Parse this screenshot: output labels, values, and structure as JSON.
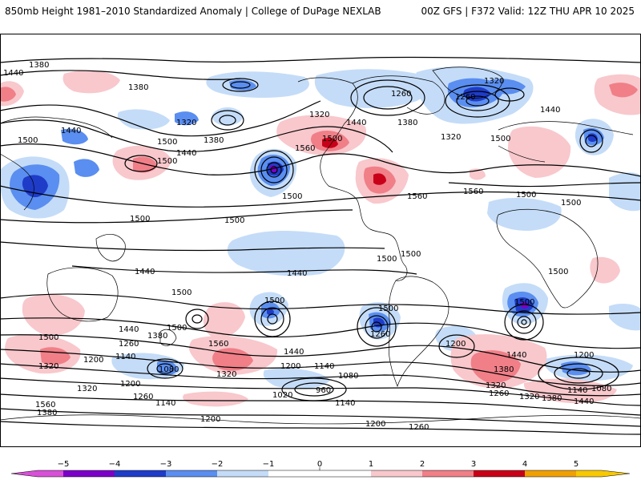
{
  "header": {
    "title_left": "850mb Height 1981–2010 Standardized Anomaly | College of DuPage NEXLAB",
    "title_right": "00Z GFS | F372 Valid: 12Z THU APR 10 2025"
  },
  "colors": {
    "neg5": "#d850d8",
    "neg4": "#7b00c8",
    "neg3": "#1e3cc8",
    "neg2": "#5a8ef0",
    "neg1": "#c4dcf8",
    "zero": "#ffffff",
    "pos1": "#f8c8cc",
    "pos2": "#f07f88",
    "pos3": "#c80018",
    "pos4": "#f0a000",
    "pos5": "#f8c800",
    "contour": "#000000",
    "coast": "#000000"
  },
  "colorbar": {
    "ticks": [
      "−5",
      "−4",
      "−3",
      "−2",
      "−1",
      "0",
      "1",
      "2",
      "3",
      "4",
      "5"
    ]
  },
  "contour_labels": [
    {
      "id": "c1",
      "text": "1380"
    },
    {
      "id": "c2",
      "text": "1440"
    },
    {
      "id": "c3",
      "text": "1380"
    },
    {
      "id": "c4",
      "text": "1320"
    },
    {
      "id": "c5",
      "text": "1260"
    },
    {
      "id": "c6",
      "text": "1320"
    },
    {
      "id": "c7",
      "text": "1260"
    },
    {
      "id": "c8",
      "text": "1380"
    },
    {
      "id": "c9",
      "text": "1320"
    },
    {
      "id": "c10",
      "text": "1440"
    },
    {
      "id": "c11",
      "text": "1440"
    },
    {
      "id": "c12",
      "text": "1500"
    },
    {
      "id": "c13",
      "text": "1440"
    },
    {
      "id": "c14",
      "text": "1500"
    },
    {
      "id": "c15",
      "text": "1380"
    },
    {
      "id": "c16",
      "text": "1320"
    },
    {
      "id": "c17",
      "text": "1560"
    },
    {
      "id": "c18",
      "text": "1500"
    },
    {
      "id": "c19",
      "text": "1440"
    },
    {
      "id": "c20",
      "text": "1500"
    },
    {
      "id": "c21",
      "text": "1560"
    },
    {
      "id": "c22",
      "text": "1500"
    },
    {
      "id": "c23",
      "text": "1560"
    },
    {
      "id": "c24",
      "text": "1500"
    },
    {
      "id": "c25",
      "text": "1500"
    },
    {
      "id": "c26",
      "text": "1500"
    },
    {
      "id": "c27",
      "text": "1500"
    },
    {
      "id": "c28",
      "text": "1500"
    },
    {
      "id": "c29",
      "text": "1500"
    },
    {
      "id": "c30",
      "text": "1440"
    },
    {
      "id": "c31",
      "text": "1440"
    },
    {
      "id": "c32",
      "text": "1500"
    },
    {
      "id": "c33",
      "text": "1500"
    },
    {
      "id": "c34",
      "text": "1500"
    },
    {
      "id": "c35",
      "text": "1500"
    },
    {
      "id": "c36",
      "text": "1500"
    },
    {
      "id": "c37",
      "text": "1500"
    },
    {
      "id": "c38",
      "text": "1560"
    },
    {
      "id": "c39",
      "text": "1440"
    },
    {
      "id": "c40",
      "text": "1380"
    },
    {
      "id": "c41",
      "text": "1320"
    },
    {
      "id": "c42",
      "text": "1260"
    },
    {
      "id": "c43",
      "text": "1200"
    },
    {
      "id": "c44",
      "text": "1140"
    },
    {
      "id": "c45",
      "text": "1080"
    },
    {
      "id": "c46",
      "text": "1200"
    },
    {
      "id": "c47",
      "text": "1320"
    },
    {
      "id": "c48",
      "text": "1380"
    },
    {
      "id": "c49",
      "text": "1260"
    },
    {
      "id": "c50",
      "text": "1140"
    },
    {
      "id": "c51",
      "text": "1560"
    },
    {
      "id": "c52",
      "text": "1440"
    },
    {
      "id": "c53",
      "text": "1320"
    },
    {
      "id": "c54",
      "text": "1200"
    },
    {
      "id": "c55",
      "text": "1140"
    },
    {
      "id": "c56",
      "text": "1080"
    },
    {
      "id": "c57",
      "text": "1020"
    },
    {
      "id": "c58",
      "text": "960"
    },
    {
      "id": "c59",
      "text": "1140"
    },
    {
      "id": "c60",
      "text": "1200"
    },
    {
      "id": "c61",
      "text": "1260"
    },
    {
      "id": "c62",
      "text": "1260"
    },
    {
      "id": "c63",
      "text": "1200"
    },
    {
      "id": "c64",
      "text": "1440"
    },
    {
      "id": "c65",
      "text": "1380"
    },
    {
      "id": "c66",
      "text": "1320"
    },
    {
      "id": "c67",
      "text": "1260"
    },
    {
      "id": "c68",
      "text": "1200"
    },
    {
      "id": "c69",
      "text": "1140"
    },
    {
      "id": "c70",
      "text": "1080"
    },
    {
      "id": "c71",
      "text": "1320"
    },
    {
      "id": "c72",
      "text": "1380"
    },
    {
      "id": "c73",
      "text": "1440"
    },
    {
      "id": "c74",
      "text": "1500"
    },
    {
      "id": "c75",
      "text": "1560"
    },
    {
      "id": "c76",
      "text": "1500"
    },
    {
      "id": "c77",
      "text": "1500"
    },
    {
      "id": "c78",
      "text": "1500"
    },
    {
      "id": "c79",
      "text": "1200"
    }
  ]
}
